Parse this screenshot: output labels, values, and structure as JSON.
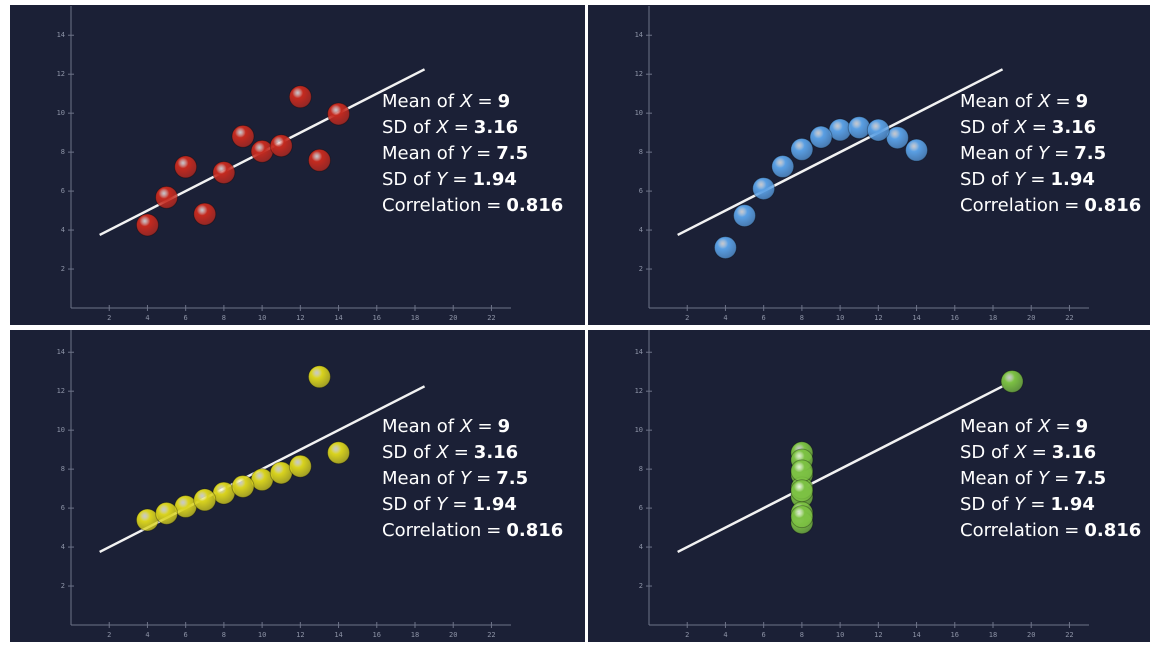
{
  "chart_data": [
    {
      "type": "scatter",
      "color": "#c42a1f",
      "x": [
        10,
        8,
        13,
        9,
        11,
        14,
        6,
        4,
        12,
        7,
        5
      ],
      "values": [
        8.04,
        6.95,
        7.58,
        8.81,
        8.33,
        9.96,
        7.24,
        4.26,
        10.84,
        4.82,
        5.68
      ],
      "xlim": [
        0,
        22.5
      ],
      "ylim": [
        0,
        15.5
      ],
      "xticks": [
        2,
        4,
        6,
        8,
        10,
        12,
        14,
        16,
        18,
        20,
        22
      ],
      "yticks": [
        2,
        4,
        6,
        8,
        10,
        12,
        14
      ],
      "trend_line": {
        "x": [
          1.5,
          18.5
        ],
        "y": [
          3.75,
          12.25
        ]
      },
      "annotations": [
        {
          "prefix": "Mean of",
          "var": "X",
          "sign": "=",
          "value": 9
        },
        {
          "prefix": "SD of",
          "var": "X",
          "sign": "=",
          "value": 3.16
        },
        {
          "prefix": "Mean of",
          "var": "Y",
          "sign": "=",
          "value": 7.5
        },
        {
          "prefix": "SD of",
          "var": "Y",
          "sign": "=",
          "value": 1.94
        },
        {
          "prefix": "Correlation",
          "sign": "=",
          "value": 0.816
        }
      ]
    },
    {
      "type": "scatter",
      "color": "#5a9fe3",
      "x": [
        10,
        8,
        13,
        9,
        11,
        14,
        6,
        4,
        12,
        7,
        5
      ],
      "values": [
        9.14,
        8.14,
        8.74,
        8.77,
        9.26,
        8.1,
        6.13,
        3.1,
        9.13,
        7.26,
        4.74
      ],
      "xlim": [
        0,
        22.5
      ],
      "ylim": [
        0,
        15.5
      ],
      "xticks": [
        2,
        4,
        6,
        8,
        10,
        12,
        14,
        16,
        18,
        20,
        22
      ],
      "yticks": [
        2,
        4,
        6,
        8,
        10,
        12,
        14
      ],
      "trend_line": {
        "x": [
          1.5,
          18.5
        ],
        "y": [
          3.75,
          12.25
        ]
      },
      "annotations": [
        {
          "prefix": "Mean of",
          "var": "X",
          "sign": "=",
          "value": 9
        },
        {
          "prefix": "SD of",
          "var": "X",
          "sign": "=",
          "value": 3.16
        },
        {
          "prefix": "Mean of",
          "var": "Y",
          "sign": "=",
          "value": 7.5
        },
        {
          "prefix": "SD of",
          "var": "Y",
          "sign": "=",
          "value": 1.94
        },
        {
          "prefix": "Correlation",
          "sign": "=",
          "value": 0.816
        }
      ]
    },
    {
      "type": "scatter",
      "color": "#d9d31e",
      "x": [
        10,
        8,
        13,
        9,
        11,
        14,
        6,
        4,
        12,
        7,
        5
      ],
      "values": [
        7.46,
        6.77,
        12.74,
        7.11,
        7.81,
        8.84,
        6.08,
        5.39,
        8.15,
        6.42,
        5.73
      ],
      "xlim": [
        0,
        22.5
      ],
      "ylim": [
        0,
        15.5
      ],
      "xticks": [
        2,
        4,
        6,
        8,
        10,
        12,
        14,
        16,
        18,
        20,
        22
      ],
      "yticks": [
        2,
        4,
        6,
        8,
        10,
        12,
        14
      ],
      "trend_line": {
        "x": [
          1.5,
          18.5
        ],
        "y": [
          3.75,
          12.25
        ]
      },
      "annotations": [
        {
          "prefix": "Mean of",
          "var": "X",
          "sign": "=",
          "value": 9
        },
        {
          "prefix": "SD of",
          "var": "X",
          "sign": "=",
          "value": 3.16
        },
        {
          "prefix": "Mean of",
          "var": "Y",
          "sign": "=",
          "value": 7.5
        },
        {
          "prefix": "SD of",
          "var": "Y",
          "sign": "=",
          "value": 1.94
        },
        {
          "prefix": "Correlation",
          "sign": "=",
          "value": 0.816
        }
      ]
    },
    {
      "type": "scatter",
      "color": "#7cc143",
      "x": [
        8,
        8,
        8,
        8,
        8,
        8,
        8,
        19,
        8,
        8,
        8
      ],
      "values": [
        6.58,
        5.76,
        7.71,
        8.84,
        8.47,
        7.04,
        5.25,
        12.5,
        5.56,
        7.91,
        6.89
      ],
      "xlim": [
        0,
        22.5
      ],
      "ylim": [
        0,
        15.5
      ],
      "xticks": [
        2,
        4,
        6,
        8,
        10,
        12,
        14,
        16,
        18,
        20,
        22
      ],
      "yticks": [
        2,
        4,
        6,
        8,
        10,
        12,
        14
      ],
      "trend_line": {
        "x": [
          1.5,
          18.5
        ],
        "y": [
          3.75,
          12.25
        ]
      },
      "annotations": [
        {
          "prefix": "Mean of",
          "var": "X",
          "sign": "=",
          "value": 9
        },
        {
          "prefix": "SD of",
          "var": "X",
          "sign": "=",
          "value": 3.16
        },
        {
          "prefix": "Mean of",
          "var": "Y",
          "sign": "=",
          "value": 7.5
        },
        {
          "prefix": "SD of",
          "var": "Y",
          "sign": "=",
          "value": 1.94
        },
        {
          "prefix": "Correlation",
          "sign": "=",
          "value": 0.816
        }
      ]
    }
  ]
}
